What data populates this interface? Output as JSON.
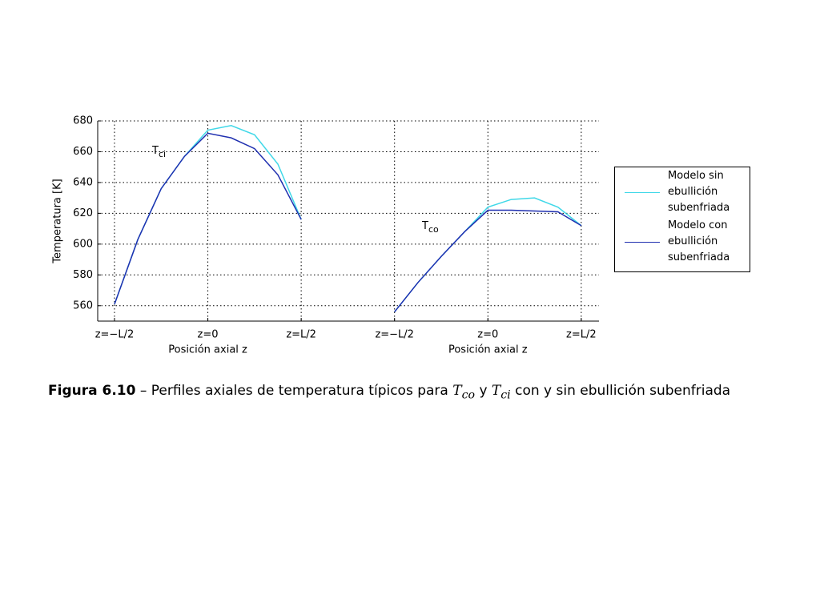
{
  "chart_data": {
    "type": "line",
    "ylabel": "Temperatura [K]",
    "xlabels": [
      "Posición axial z",
      "Posición axial z"
    ],
    "x": [
      0,
      0.25,
      0.5,
      0.75,
      1,
      1.25,
      1.5,
      1.75,
      2,
      null,
      3,
      3.25,
      3.5,
      3.75,
      4,
      4.25,
      4.5,
      4.75,
      5
    ],
    "series": [
      {
        "name": "Modelo sin ebullición subenfriada",
        "color": "#40d8e8",
        "values": [
          561,
          603,
          636,
          657,
          674,
          677,
          671,
          652,
          616,
          null,
          556,
          575,
          592,
          608,
          624,
          629,
          630,
          624,
          612
        ]
      },
      {
        "name": "Modelo con ebullición subenfriada",
        "color": "#2030b0",
        "values": [
          561,
          603,
          636,
          657,
          672,
          669,
          662,
          645,
          616,
          null,
          556,
          575,
          592,
          608,
          622,
          622,
          621.5,
          621,
          612
        ]
      }
    ],
    "xlim": [
      -0.18,
      5.19
    ],
    "xticks": [
      {
        "value": 0,
        "label": "z=−L/2"
      },
      {
        "value": 1,
        "label": "z=0"
      },
      {
        "value": 2,
        "label": "z=L/2"
      },
      {
        "value": 3,
        "label": "z=−L/2"
      },
      {
        "value": 4,
        "label": "z=0"
      },
      {
        "value": 5,
        "label": "z=L/2"
      }
    ],
    "ylim": [
      550,
      680
    ],
    "yticks": [
      560,
      580,
      600,
      620,
      640,
      660,
      680
    ],
    "grid": true,
    "legend": "outside-right",
    "annotations": [
      {
        "text": "T",
        "sub": "ci"
      },
      {
        "text": "T",
        "sub": "co"
      }
    ],
    "caption": {
      "label": "Figura 6.10",
      "text": "– Perfiles axiales de temperatura típicos para",
      "sym1": "T",
      "sub1": "co",
      "mid": "y",
      "sym2": "T",
      "sub2": "ci",
      "end": "con y sin ebullición subenfriada"
    }
  }
}
